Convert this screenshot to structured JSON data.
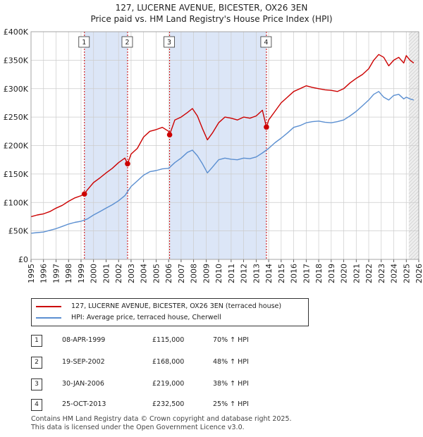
{
  "header": {
    "title": "127, LUCERNE AVENUE, BICESTER, OX26 3EN",
    "subtitle": "Price paid vs. HM Land Registry's House Price Index (HPI)"
  },
  "colors": {
    "red": "#cc0000",
    "blue": "#5b8fd1",
    "shade": "#dce6f7",
    "grid": "#cccccc"
  },
  "chart_data": {
    "type": "line",
    "ylim": [
      0,
      400000
    ],
    "xlim": [
      1995,
      2026
    ],
    "yticks": [
      {
        "value": 0,
        "label": "£0"
      },
      {
        "value": 50000,
        "label": "£50K"
      },
      {
        "value": 100000,
        "label": "£100K"
      },
      {
        "value": 150000,
        "label": "£150K"
      },
      {
        "value": 200000,
        "label": "£200K"
      },
      {
        "value": 250000,
        "label": "£250K"
      },
      {
        "value": 300000,
        "label": "£300K"
      },
      {
        "value": 350000,
        "label": "£350K"
      },
      {
        "value": 400000,
        "label": "£400K"
      }
    ],
    "xticks": [
      1995,
      1996,
      1997,
      1998,
      1999,
      2000,
      2001,
      2002,
      2003,
      2004,
      2005,
      2006,
      2007,
      2008,
      2009,
      2010,
      2011,
      2012,
      2013,
      2014,
      2015,
      2016,
      2017,
      2018,
      2019,
      2020,
      2021,
      2022,
      2023,
      2024,
      2025,
      2026
    ],
    "shaded_ranges": [
      [
        1999.27,
        2002.72
      ],
      [
        2006.08,
        2013.82
      ]
    ],
    "forecast_start": 2025.2,
    "series": [
      {
        "name": "127, LUCERNE AVENUE, BICESTER, OX26 3EN (terraced house)",
        "color": "red",
        "x": [
          1995,
          1995.5,
          1996,
          1996.5,
          1997,
          1997.5,
          1998,
          1998.5,
          1999,
          1999.27,
          1999.5,
          2000,
          2000.5,
          2001,
          2001.5,
          2002,
          2002.5,
          2002.72,
          2003,
          2003.5,
          2004,
          2004.5,
          2005,
          2005.5,
          2006,
          2006.08,
          2006.5,
          2007,
          2007.5,
          2007.9,
          2008.3,
          2008.7,
          2009.1,
          2009.5,
          2010,
          2010.5,
          2011,
          2011.5,
          2012,
          2012.5,
          2013,
          2013.5,
          2013.82,
          2014,
          2014.5,
          2015,
          2015.5,
          2016,
          2016.5,
          2017,
          2017.5,
          2018,
          2018.5,
          2019,
          2019.5,
          2020,
          2020.5,
          2021,
          2021.5,
          2022,
          2022.4,
          2022.8,
          2023.2,
          2023.6,
          2024,
          2024.4,
          2024.8,
          2025,
          2025.3,
          2025.6
        ],
        "values": [
          75000,
          78000,
          80000,
          84000,
          90000,
          95000,
          102000,
          108000,
          112000,
          115000,
          122000,
          135000,
          143000,
          152000,
          160000,
          170000,
          178000,
          168000,
          185000,
          195000,
          215000,
          225000,
          228000,
          232000,
          225000,
          219000,
          245000,
          250000,
          258000,
          265000,
          252000,
          230000,
          210000,
          222000,
          240000,
          250000,
          248000,
          245000,
          250000,
          248000,
          252000,
          262000,
          232500,
          245000,
          260000,
          275000,
          285000,
          295000,
          300000,
          305000,
          302000,
          300000,
          298000,
          297000,
          295000,
          300000,
          310000,
          318000,
          325000,
          335000,
          350000,
          360000,
          355000,
          340000,
          350000,
          355000,
          345000,
          358000,
          350000,
          345000
        ]
      },
      {
        "name": "HPI: Average price, terraced house, Cherwell",
        "color": "blue",
        "x": [
          1995,
          1995.5,
          1996,
          1996.5,
          1997,
          1997.5,
          1998,
          1998.5,
          1999,
          1999.5,
          2000,
          2000.5,
          2001,
          2001.5,
          2002,
          2002.5,
          2003,
          2003.5,
          2004,
          2004.5,
          2005,
          2005.5,
          2006,
          2006.5,
          2007,
          2007.5,
          2007.9,
          2008.3,
          2008.7,
          2009.1,
          2009.5,
          2010,
          2010.5,
          2011,
          2011.5,
          2012,
          2012.5,
          2013,
          2013.5,
          2014,
          2014.5,
          2015,
          2015.5,
          2016,
          2016.5,
          2017,
          2017.5,
          2018,
          2018.5,
          2019,
          2019.5,
          2020,
          2020.5,
          2021,
          2021.5,
          2022,
          2022.4,
          2022.8,
          2023.2,
          2023.6,
          2024,
          2024.4,
          2024.8,
          2025,
          2025.3,
          2025.6
        ],
        "values": [
          46000,
          47000,
          48000,
          51000,
          54000,
          58000,
          62000,
          65000,
          67000,
          71000,
          78000,
          84000,
          90000,
          96000,
          103000,
          112000,
          128000,
          138000,
          148000,
          154000,
          156000,
          159000,
          160000,
          170000,
          178000,
          188000,
          192000,
          182000,
          168000,
          152000,
          162000,
          175000,
          178000,
          176000,
          175000,
          178000,
          177000,
          180000,
          187000,
          195000,
          205000,
          213000,
          222000,
          232000,
          235000,
          240000,
          242000,
          243000,
          241000,
          240000,
          242000,
          245000,
          252000,
          260000,
          270000,
          280000,
          290000,
          295000,
          285000,
          280000,
          288000,
          290000,
          282000,
          285000,
          282000,
          280000
        ]
      }
    ],
    "markers": [
      {
        "label": "1",
        "x": 1999.27,
        "y": 115000
      },
      {
        "label": "2",
        "x": 2002.72,
        "y": 168000
      },
      {
        "label": "3",
        "x": 2006.08,
        "y": 219000
      },
      {
        "label": "4",
        "x": 2013.82,
        "y": 232500
      }
    ]
  },
  "legend": {
    "red_label": "127, LUCERNE AVENUE, BICESTER, OX26 3EN (terraced house)",
    "blue_label": "HPI: Average price, terraced house, Cherwell"
  },
  "transactions": [
    {
      "num": "1",
      "date": "08-APR-1999",
      "price": "£115,000",
      "hpi": "70% ↑ HPI"
    },
    {
      "num": "2",
      "date": "19-SEP-2002",
      "price": "£168,000",
      "hpi": "48% ↑ HPI"
    },
    {
      "num": "3",
      "date": "30-JAN-2006",
      "price": "£219,000",
      "hpi": "38% ↑ HPI"
    },
    {
      "num": "4",
      "date": "25-OCT-2013",
      "price": "£232,500",
      "hpi": "25% ↑ HPI"
    }
  ],
  "footer": {
    "line1": "Contains HM Land Registry data © Crown copyright and database right 2025.",
    "line2": "This data is licensed under the Open Government Licence v3.0."
  }
}
